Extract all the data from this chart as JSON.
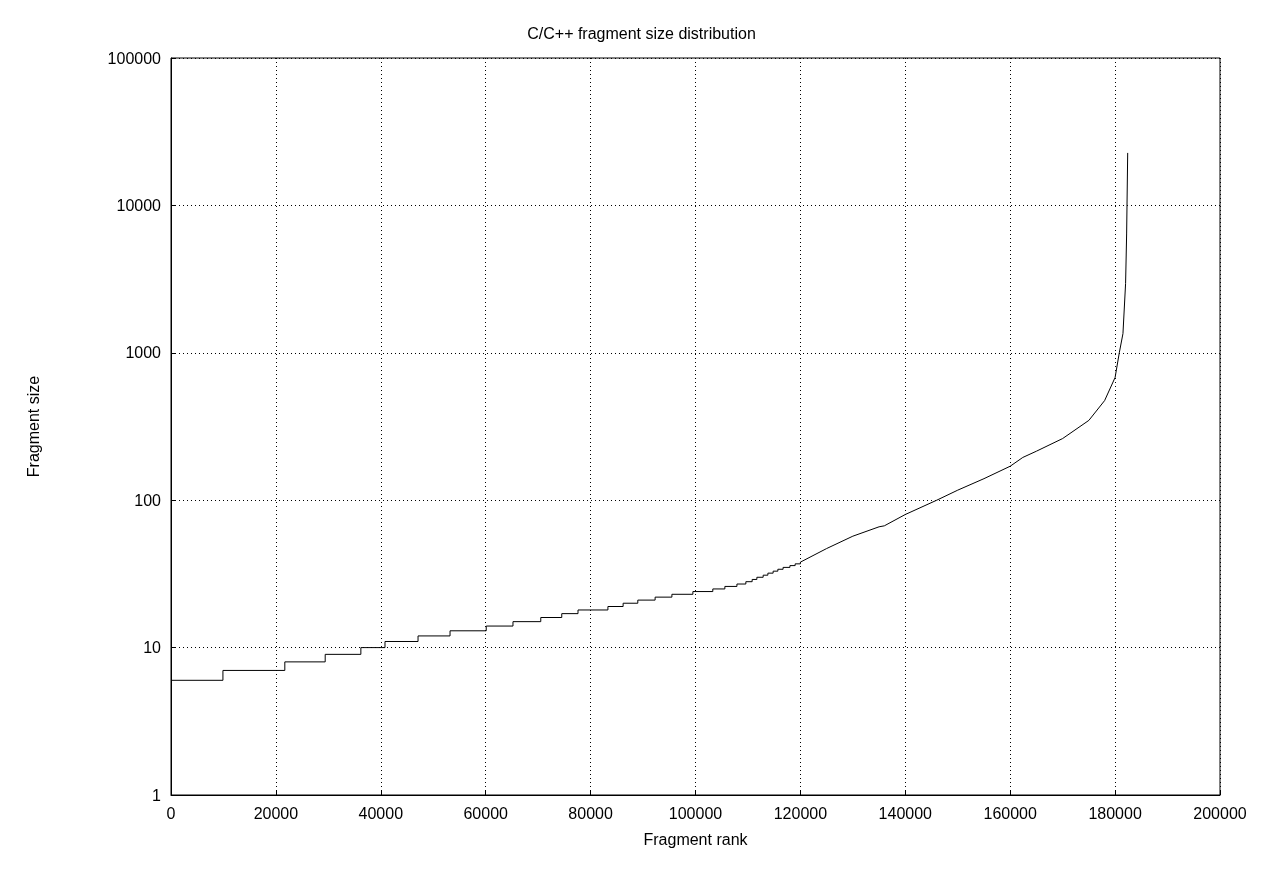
{
  "chart_data": {
    "type": "step",
    "title": "C/C++ fragment size distribution",
    "xlabel": "Fragment rank",
    "ylabel": "Fragment size",
    "series": [
      {
        "color": "#000000",
        "x": [
          0,
          9900,
          21700,
          29400,
          36200,
          40800,
          47100,
          53200,
          60100,
          65200,
          70500,
          74500,
          77600,
          83300,
          86200,
          89000,
          92300,
          95500,
          99500,
          103300,
          105600,
          107900,
          109600,
          110800,
          111700,
          112900,
          113800,
          114800,
          115700,
          116700,
          118000,
          119000,
          120000
        ],
        "values": [
          6,
          7,
          8,
          9,
          10,
          11,
          12,
          13,
          14,
          15,
          16,
          17,
          18,
          19,
          20,
          21,
          22,
          23,
          24,
          25,
          26,
          27,
          28,
          29,
          30,
          31,
          32,
          33,
          34,
          35,
          36,
          37,
          38
        ]
      },
      {
        "type": "line",
        "color": "#000000",
        "x": [
          120000,
          125000,
          130000,
          135000,
          136000,
          140000,
          146000,
          150000,
          155000,
          160000,
          162400,
          165000,
          170000,
          175000,
          178000,
          180000,
          180800,
          181500,
          182000,
          182200,
          182400
        ],
        "values": [
          38,
          47,
          57,
          66,
          67,
          80,
          100,
          117,
          140,
          170,
          195,
          215,
          262,
          348,
          474,
          680,
          1000,
          1350,
          2950,
          6400,
          22700
        ]
      }
    ],
    "xlim": [
      0,
      200000
    ],
    "xticks": [
      0,
      20000,
      40000,
      60000,
      80000,
      100000,
      120000,
      140000,
      160000,
      180000,
      200000
    ],
    "ylim": [
      1,
      100000
    ],
    "yticks": [
      1,
      10,
      100,
      1000,
      10000,
      100000
    ],
    "log": "y",
    "grid": true
  }
}
